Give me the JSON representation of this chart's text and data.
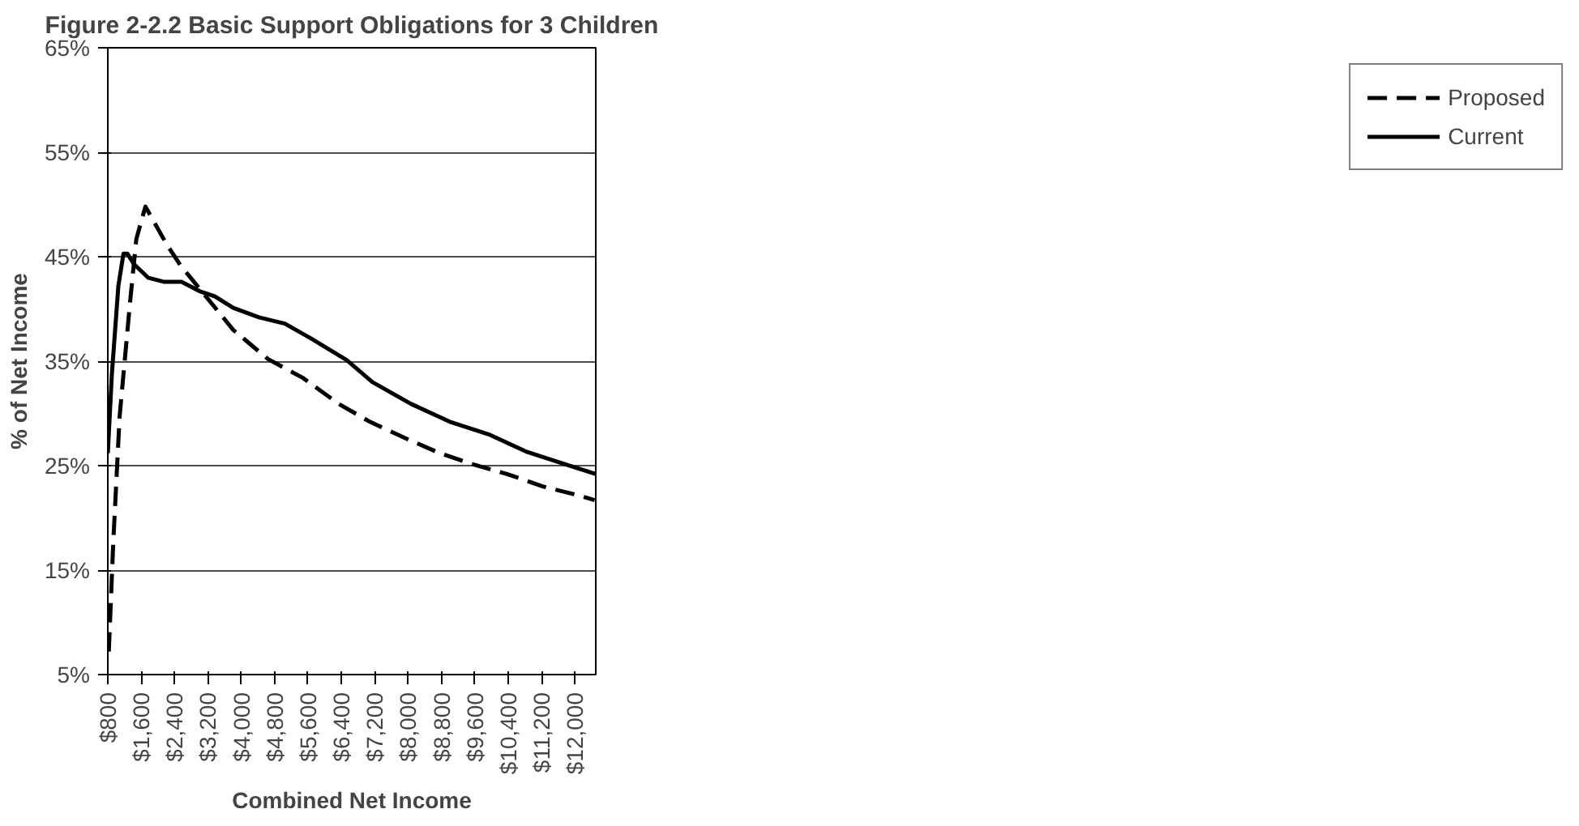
{
  "chart_data": {
    "type": "line",
    "title": "Figure 2-2.2 Basic Support Obligations for 3 Children",
    "xlabel": "Combined Net Income",
    "ylabel": "% of Net Income",
    "xlim": [
      800,
      12500
    ],
    "ylim": [
      5,
      65
    ],
    "xticks": [
      {
        "value": 800,
        "label": "$800"
      },
      {
        "value": 1600,
        "label": "$1,600"
      },
      {
        "value": 2400,
        "label": "$2,400"
      },
      {
        "value": 3200,
        "label": "$3,200"
      },
      {
        "value": 4000,
        "label": "$4,000"
      },
      {
        "value": 4800,
        "label": "$4,800"
      },
      {
        "value": 5600,
        "label": "$5,600"
      },
      {
        "value": 6400,
        "label": "$6,400"
      },
      {
        "value": 7200,
        "label": "$7,200"
      },
      {
        "value": 8000,
        "label": "$8,000"
      },
      {
        "value": 8800,
        "label": "$8,800"
      },
      {
        "value": 9600,
        "label": "$9,600"
      },
      {
        "value": 10400,
        "label": "$10,400"
      },
      {
        "value": 11200,
        "label": "$11,200"
      },
      {
        "value": 12000,
        "label": "$12,000"
      }
    ],
    "yticks": [
      {
        "value": 5,
        "label": "5%"
      },
      {
        "value": 15,
        "label": "15%"
      },
      {
        "value": 25,
        "label": "25%"
      },
      {
        "value": 35,
        "label": "35%"
      },
      {
        "value": 45,
        "label": "45%"
      },
      {
        "value": 55,
        "label": "55%"
      },
      {
        "value": 65,
        "label": "65%"
      }
    ],
    "grid": "y",
    "legend": "right",
    "marker": "none",
    "series": [
      {
        "name": "Proposed",
        "color": "#000000",
        "line_style": "dashed",
        "x": [
          824,
          930,
          1083,
          1330,
          1484,
          1702,
          2195,
          2537,
          3807,
          4641,
          5478,
          6341,
          7083,
          7950,
          8755,
          9572,
          10371,
          11240,
          12040,
          12473
        ],
        "values": [
          7.2,
          17.6,
          29.7,
          40.5,
          46.7,
          49.8,
          46.3,
          44.2,
          38.0,
          35.2,
          33.4,
          30.9,
          29.2,
          27.6,
          26.2,
          25.1,
          24.2,
          23.0,
          22.2,
          21.7
        ]
      },
      {
        "name": "Current",
        "color": "#000000",
        "line_style": "solid",
        "x": [
          800,
          898,
          1053,
          1176,
          1268,
          1424,
          1764,
          2136,
          2567,
          3000,
          3371,
          3807,
          4425,
          5044,
          5662,
          6527,
          7146,
          8074,
          9002,
          9930,
          10858,
          11786,
          12500
        ],
        "values": [
          26.2,
          33.8,
          42.2,
          45.3,
          45.3,
          44.3,
          43.0,
          42.6,
          42.6,
          41.7,
          41.2,
          40.1,
          39.2,
          38.6,
          37.2,
          35.1,
          33.0,
          30.9,
          29.2,
          28.0,
          26.3,
          25.1,
          24.2
        ]
      }
    ]
  }
}
